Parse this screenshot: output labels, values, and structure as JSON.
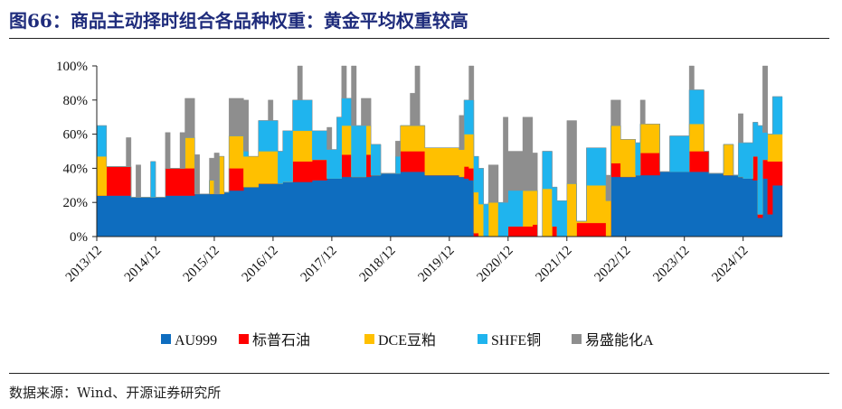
{
  "title": "图66：商品主动择时组合各品种权重：黄金平均权重较高",
  "source": "数据来源：Wind、开源证券研究所",
  "chart_data": {
    "type": "area",
    "stacked": true,
    "title": "",
    "xlabel": "",
    "ylabel": "",
    "ylim": [
      0,
      100
    ],
    "yticks": [
      "0%",
      "20%",
      "40%",
      "60%",
      "80%",
      "100%"
    ],
    "xticks": [
      "2013/12",
      "2014/12",
      "2015/12",
      "2016/12",
      "2017/12",
      "2018/12",
      "2019/12",
      "2020/12",
      "2021/12",
      "2022/12",
      "2023/12",
      "2024/12"
    ],
    "x_start": "2013-12",
    "x_end": "2025-08",
    "legend_position": "bottom",
    "grid": false,
    "series": [
      {
        "name": "AU999",
        "color": "#0E6DBF"
      },
      {
        "name": "标普石油",
        "color": "#FF0000"
      },
      {
        "name": "DCE豆粕",
        "color": "#FFC000"
      },
      {
        "name": "SHFE铜",
        "color": "#1FB4EE"
      },
      {
        "name": "易盛能化A",
        "color": "#8E8E8E"
      }
    ],
    "segments_columns": [
      "start",
      "AU999",
      "标普石油",
      "DCE豆粕",
      "SHFE铜",
      "易盛能化A"
    ],
    "segments": [
      [
        "2013-12",
        24,
        0,
        23,
        18,
        0
      ],
      [
        "2014-02",
        24,
        17,
        0,
        0,
        0
      ],
      [
        "2014-06",
        24,
        17,
        0,
        0,
        17
      ],
      [
        "2014-07",
        23,
        0,
        0,
        0,
        0
      ],
      [
        "2014-08",
        23,
        0,
        0,
        0,
        19
      ],
      [
        "2014-09",
        23,
        0,
        0,
        0,
        0
      ],
      [
        "2014-11",
        23,
        0,
        0,
        21,
        0
      ],
      [
        "2014-12",
        23,
        0,
        0,
        0,
        0
      ],
      [
        "2015-02",
        24,
        16,
        0,
        0,
        21
      ],
      [
        "2015-03",
        24,
        16,
        0,
        0,
        0
      ],
      [
        "2015-05",
        24,
        16,
        0,
        0,
        21
      ],
      [
        "2015-06",
        24,
        16,
        18,
        0,
        23
      ],
      [
        "2015-08",
        25,
        0,
        0,
        0,
        23
      ],
      [
        "2015-09",
        25,
        0,
        0,
        0,
        0
      ],
      [
        "2015-11",
        25,
        0,
        8,
        0,
        13
      ],
      [
        "2015-12",
        25,
        0,
        0,
        0,
        24
      ],
      [
        "2016-01",
        25,
        0,
        22,
        0,
        0
      ],
      [
        "2016-02",
        26,
        0,
        0,
        0,
        0
      ],
      [
        "2016-03",
        27,
        13,
        19,
        0,
        22
      ],
      [
        "2016-06",
        29,
        0,
        18,
        3,
        30
      ],
      [
        "2016-07",
        29,
        0,
        18,
        0,
        0
      ],
      [
        "2016-09",
        31,
        0,
        19,
        18,
        0
      ],
      [
        "2016-11",
        31,
        0,
        19,
        18,
        12
      ],
      [
        "2016-12",
        31,
        0,
        19,
        18,
        0
      ],
      [
        "2017-01",
        31,
        0,
        0,
        19,
        0
      ],
      [
        "2017-02",
        32,
        0,
        0,
        30,
        0
      ],
      [
        "2017-04",
        32,
        12,
        18,
        18,
        0
      ],
      [
        "2017-05",
        32,
        12,
        18,
        18,
        20
      ],
      [
        "2017-06",
        32,
        12,
        18,
        18,
        0
      ],
      [
        "2017-08",
        33,
        12,
        0,
        17,
        0
      ],
      [
        "2017-11",
        34,
        0,
        0,
        17,
        13
      ],
      [
        "2017-12",
        34,
        0,
        0,
        17,
        0
      ],
      [
        "2018-01",
        34,
        0,
        0,
        36,
        0
      ],
      [
        "2018-02",
        35,
        13,
        17,
        16,
        19
      ],
      [
        "2018-03",
        35,
        13,
        17,
        16,
        0
      ],
      [
        "2018-04",
        35,
        0,
        0,
        30,
        35
      ],
      [
        "2018-05",
        35,
        0,
        0,
        30,
        0
      ],
      [
        "2018-06",
        35,
        0,
        0,
        30,
        16
      ],
      [
        "2018-07",
        35,
        13,
        17,
        0,
        16
      ],
      [
        "2018-08",
        36,
        0,
        0,
        18,
        0
      ],
      [
        "2018-10",
        37,
        0,
        0,
        0,
        0
      ],
      [
        "2019-01",
        37,
        0,
        0,
        10,
        9
      ],
      [
        "2019-02",
        38,
        12,
        15,
        0,
        0
      ],
      [
        "2019-04",
        38,
        12,
        15,
        0,
        19
      ],
      [
        "2019-05",
        38,
        12,
        15,
        0,
        35
      ],
      [
        "2019-06",
        38,
        12,
        15,
        0,
        0
      ],
      [
        "2019-07",
        36,
        0,
        16,
        0,
        0
      ],
      [
        "2020-02",
        35,
        0,
        16,
        0,
        20
      ],
      [
        "2020-03",
        34,
        7,
        19,
        20,
        0
      ],
      [
        "2020-04",
        33,
        7,
        20,
        20,
        20
      ],
      [
        "2020-05",
        0,
        2,
        24,
        21,
        0
      ],
      [
        "2020-06",
        0,
        0,
        19,
        21,
        0
      ],
      [
        "2020-07",
        0,
        0,
        0,
        19,
        0
      ],
      [
        "2020-08",
        0,
        0,
        20,
        0,
        22
      ],
      [
        "2020-10",
        0,
        0,
        0,
        20,
        0
      ],
      [
        "2020-11",
        0,
        0,
        0,
        20,
        50
      ],
      [
        "2020-12",
        0,
        6,
        0,
        21,
        23
      ],
      [
        "2021-03",
        0,
        6,
        21,
        0,
        43
      ],
      [
        "2021-05",
        0,
        7,
        20,
        0,
        22
      ],
      [
        "2021-06",
        0,
        0,
        0,
        0,
        0
      ],
      [
        "2021-07",
        0,
        0,
        28,
        22,
        0
      ],
      [
        "2021-09",
        0,
        6,
        0,
        23,
        0
      ],
      [
        "2021-10",
        0,
        0,
        0,
        21,
        0
      ],
      [
        "2021-12",
        0,
        0,
        31,
        0,
        37
      ],
      [
        "2022-02",
        0,
        8,
        1,
        0,
        0
      ],
      [
        "2022-04",
        0,
        8,
        22,
        22,
        0
      ],
      [
        "2022-08",
        0,
        0,
        21,
        0,
        15
      ],
      [
        "2022-09",
        35,
        8,
        22,
        0,
        15
      ],
      [
        "2022-11",
        35,
        0,
        22,
        0,
        0
      ],
      [
        "2023-02",
        36,
        0,
        0,
        19,
        0
      ],
      [
        "2023-03",
        36,
        13,
        17,
        0,
        14
      ],
      [
        "2023-04",
        36,
        13,
        17,
        0,
        0
      ],
      [
        "2023-07",
        38,
        0,
        0,
        0,
        0
      ],
      [
        "2023-09",
        38,
        0,
        0,
        21,
        0
      ],
      [
        "2024-01",
        38,
        12,
        16,
        20,
        14
      ],
      [
        "2024-02",
        38,
        12,
        16,
        20,
        0
      ],
      [
        "2024-04",
        38,
        12,
        0,
        0,
        0
      ],
      [
        "2024-05",
        37,
        0,
        0,
        0,
        0
      ],
      [
        "2024-08",
        36,
        0,
        18,
        0,
        0
      ],
      [
        "2024-10",
        36,
        0,
        0,
        0,
        0
      ],
      [
        "2024-11",
        35,
        0,
        0,
        20,
        17
      ],
      [
        "2024-12",
        34,
        0,
        0,
        21,
        0
      ],
      [
        "2025-02",
        33,
        14,
        0,
        20,
        0
      ],
      [
        "2025-03",
        11,
        2,
        0,
        52,
        0
      ],
      [
        "2025-04",
        34,
        11,
        0,
        16,
        39
      ],
      [
        "2025-05",
        13,
        31,
        16,
        0,
        0
      ],
      [
        "2025-06",
        30,
        14,
        16,
        22,
        0
      ]
    ]
  }
}
